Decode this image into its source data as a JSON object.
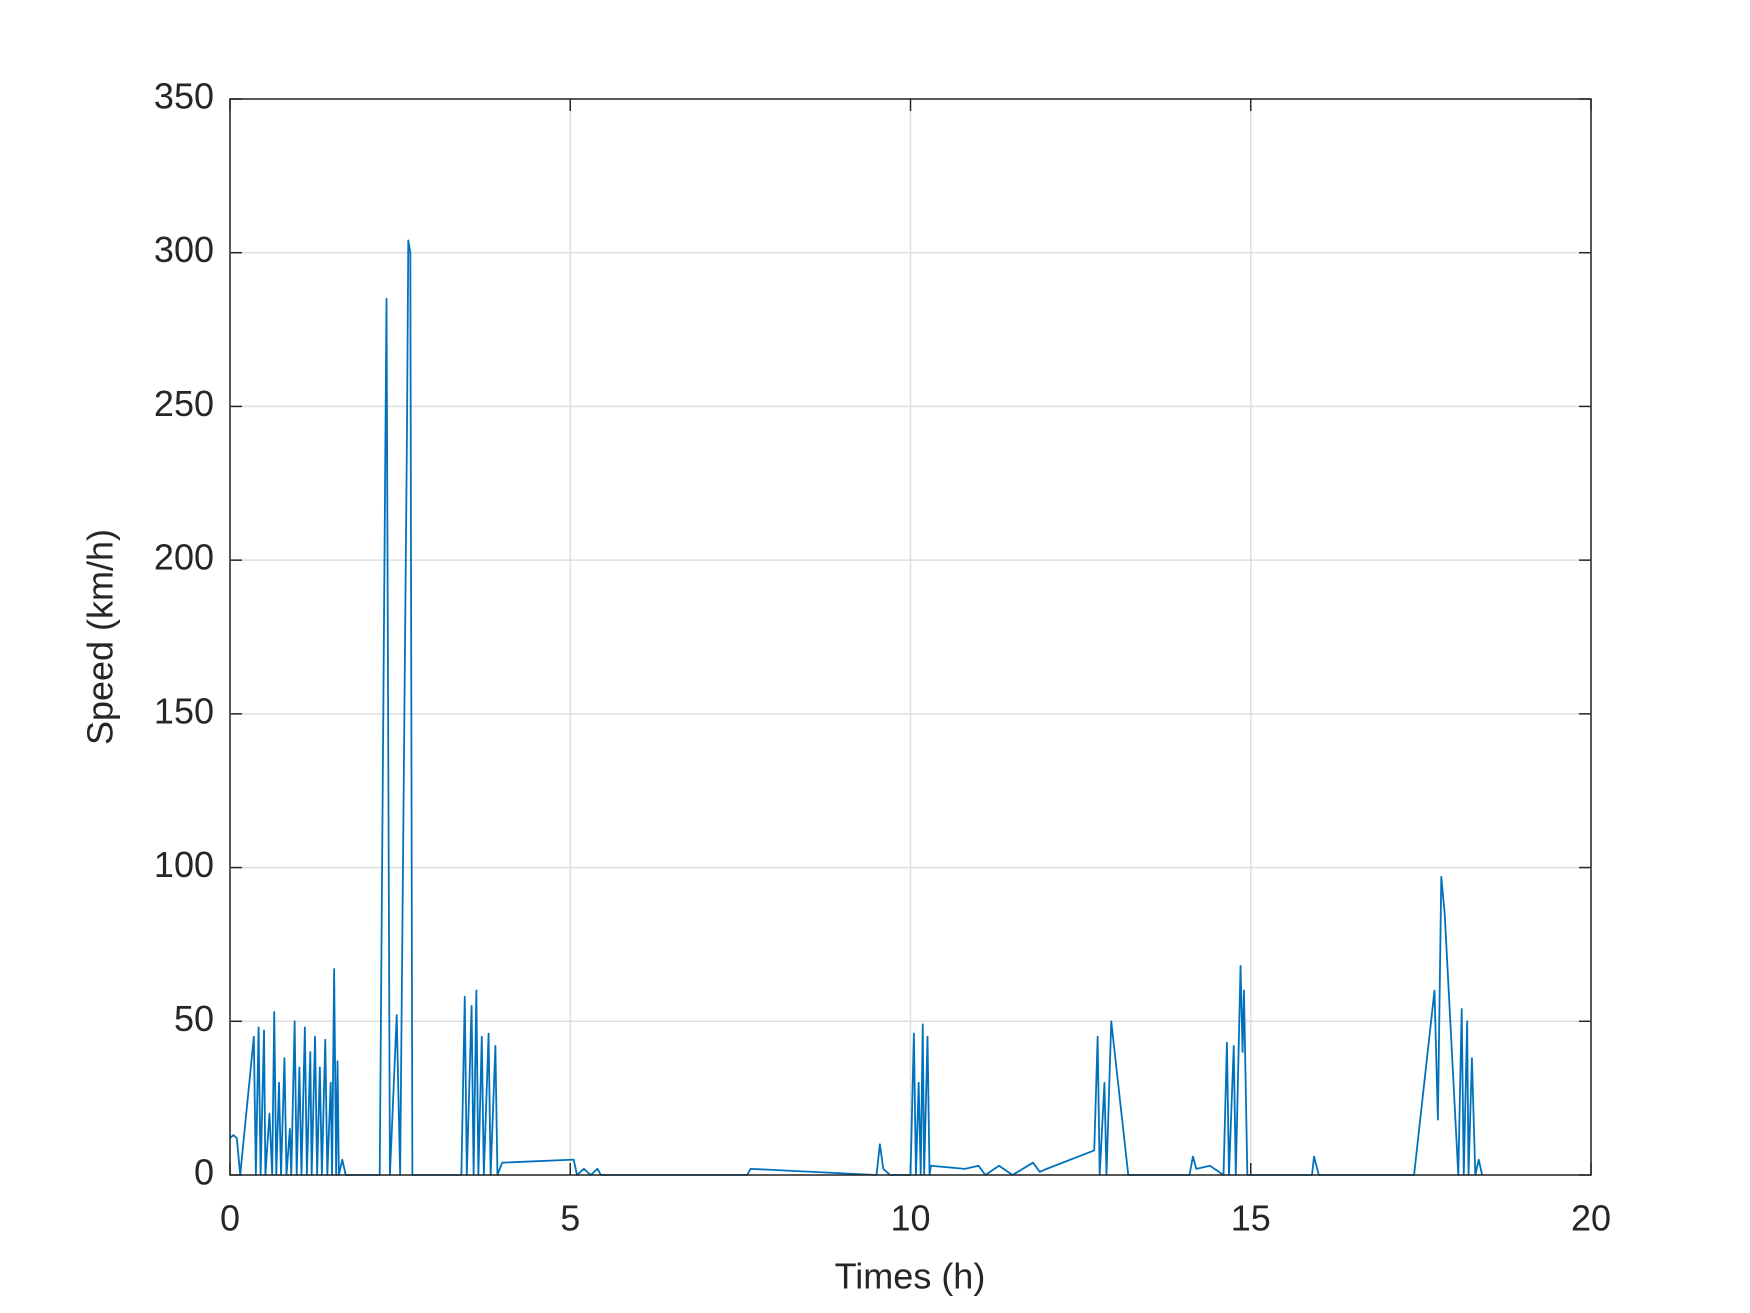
{
  "chart_data": {
    "type": "line",
    "xlabel": "Times (h)",
    "ylabel": "Speed (km/h)",
    "xlim": [
      0,
      20
    ],
    "ylim": [
      0,
      350
    ],
    "xticks": [
      0,
      5,
      10,
      15,
      20
    ],
    "yticks": [
      0,
      50,
      100,
      150,
      200,
      250,
      300,
      350
    ],
    "grid": true,
    "x": [
      0,
      0.05,
      0.1,
      0.15,
      0.35,
      0.38,
      0.42,
      0.45,
      0.5,
      0.52,
      0.58,
      0.62,
      0.65,
      0.68,
      0.72,
      0.75,
      0.8,
      0.83,
      0.88,
      0.9,
      0.95,
      0.98,
      1.02,
      1.05,
      1.1,
      1.13,
      1.18,
      1.2,
      1.25,
      1.28,
      1.32,
      1.35,
      1.4,
      1.43,
      1.48,
      1.5,
      1.53,
      1.56,
      1.58,
      1.6,
      1.65,
      1.7,
      2.2,
      2.3,
      2.35,
      2.45,
      2.5,
      2.6,
      2.62,
      2.65,
      2.68,
      3.4,
      3.45,
      3.48,
      3.55,
      3.58,
      3.62,
      3.65,
      3.7,
      3.73,
      3.8,
      3.83,
      3.9,
      3.93,
      4.0,
      5.05,
      5.1,
      5.2,
      5.3,
      5.4,
      5.45,
      7.6,
      7.65,
      9.5,
      9.55,
      9.6,
      9.7,
      10.0,
      10.05,
      10.08,
      10.12,
      10.15,
      10.18,
      10.2,
      10.25,
      10.28,
      10.3,
      10.8,
      11.0,
      11.1,
      11.3,
      11.5,
      11.8,
      11.9,
      12.0,
      12.7,
      12.75,
      12.78,
      12.85,
      12.88,
      12.95,
      13.2,
      14.1,
      14.15,
      14.2,
      14.4,
      14.6,
      14.65,
      14.68,
      14.75,
      14.78,
      14.85,
      14.88,
      14.9,
      14.95,
      15.9,
      15.93,
      16.0,
      17.4,
      17.7,
      17.75,
      17.8,
      17.85,
      18.05,
      18.1,
      18.13,
      18.18,
      18.2,
      18.25,
      18.3,
      18.35,
      18.4
    ],
    "series": [
      {
        "name": "Speed",
        "color": "#0072bd",
        "values": [
          12,
          13,
          12,
          0,
          45,
          0,
          48,
          0,
          47,
          0,
          20,
          0,
          53,
          0,
          30,
          0,
          38,
          0,
          15,
          0,
          50,
          0,
          35,
          0,
          48,
          0,
          40,
          0,
          45,
          0,
          35,
          0,
          44,
          0,
          30,
          0,
          67,
          0,
          37,
          0,
          5,
          0,
          0,
          285,
          0,
          52,
          0,
          240,
          304,
          300,
          0,
          0,
          58,
          0,
          55,
          0,
          60,
          0,
          45,
          0,
          46,
          0,
          42,
          0,
          4,
          5,
          0,
          2,
          0,
          2,
          0,
          0,
          2,
          0,
          10,
          2,
          0,
          0,
          46,
          0,
          30,
          0,
          49,
          0,
          45,
          0,
          3,
          2,
          3,
          0,
          3,
          0,
          4,
          1,
          2,
          8,
          45,
          0,
          30,
          0,
          50,
          0,
          0,
          6,
          2,
          3,
          0,
          43,
          0,
          42,
          0,
          68,
          40,
          60,
          0,
          0,
          6,
          0,
          0,
          60,
          18,
          97,
          85,
          0,
          54,
          0,
          50,
          0,
          38,
          0,
          5,
          0
        ]
      }
    ]
  }
}
